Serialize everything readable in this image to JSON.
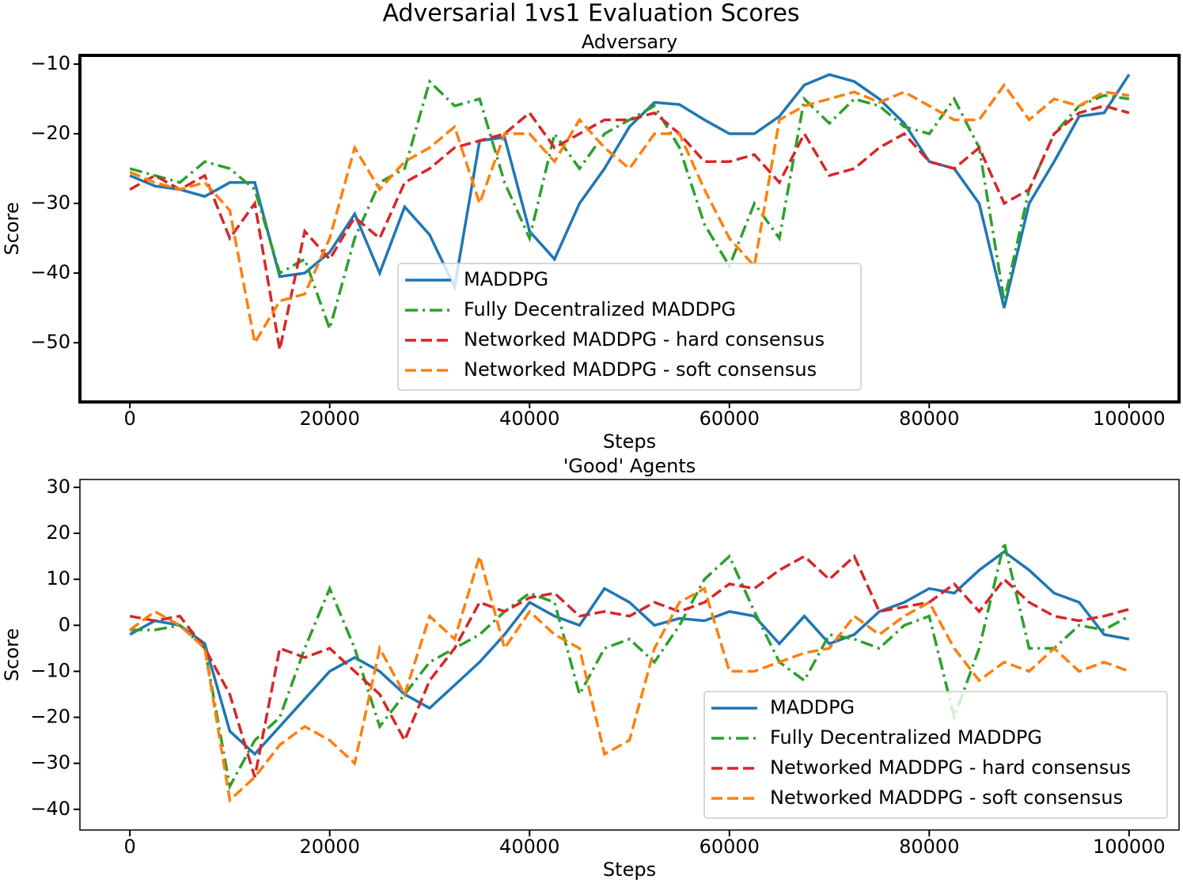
{
  "title": "Adversarial 1vs1 Evaluation Scores",
  "chart_data": [
    {
      "type": "line",
      "title": "Adversary",
      "xlabel": "Steps",
      "ylabel": "Score",
      "legend": "lower center",
      "x": [
        0,
        2500,
        5000,
        7500,
        10000,
        12500,
        15000,
        17500,
        20000,
        22500,
        25000,
        27500,
        30000,
        32500,
        35000,
        37500,
        40000,
        42500,
        45000,
        47500,
        50000,
        52500,
        55000,
        57500,
        60000,
        62500,
        65000,
        67500,
        70000,
        72500,
        75000,
        77500,
        80000,
        82500,
        85000,
        87500,
        90000,
        92500,
        95000,
        97500,
        100000
      ],
      "xlim": [
        -5000,
        105000
      ],
      "xticks": [
        0,
        20000,
        40000,
        60000,
        80000,
        100000
      ],
      "ylim": [
        -58.5,
        -8.75
      ],
      "yticks": [
        {
          "value": -50,
          "label": "−50"
        },
        {
          "value": -40,
          "label": "−40"
        },
        {
          "value": -30,
          "label": "−30"
        },
        {
          "value": -20,
          "label": "−20"
        },
        {
          "value": -10,
          "label": "−10"
        }
      ],
      "series": [
        {
          "name": "MADDPG",
          "color": "#1f77b4",
          "linestyle": "solid",
          "values": [
            -26,
            -27.5,
            -28,
            -29,
            -27,
            -27,
            -40.5,
            -40,
            -37,
            -31.5,
            -40,
            -30.5,
            -34.5,
            -42,
            -21,
            -20.5,
            -34,
            -38,
            -30,
            -25,
            -19,
            -15.5,
            -15.8,
            -18,
            -20,
            -20,
            -17.5,
            -13,
            -11.5,
            -12.5,
            -15,
            -18.5,
            -24,
            -25,
            -30,
            -45,
            -30,
            -24,
            -17.5,
            -17,
            -11.5
          ]
        },
        {
          "name": "Fully Decentralized MADDPG",
          "color": "#2ca02c",
          "linestyle": "dashdot",
          "values": [
            -25,
            -26,
            -27,
            -24,
            -25,
            -28,
            -40,
            -38,
            -48,
            -35,
            -27,
            -25,
            -12.5,
            -16,
            -15,
            -27,
            -35,
            -20,
            -25,
            -20,
            -18,
            -16,
            -22,
            -33,
            -39,
            -30,
            -35,
            -15,
            -18.5,
            -15,
            -16,
            -19,
            -20,
            -15,
            -22,
            -44,
            -28,
            -20,
            -16,
            -14.5,
            -15
          ]
        },
        {
          "name": "Networked MADDPG - hard consensus",
          "color": "#d62728",
          "linestyle": "dashed",
          "values": [
            -28,
            -26,
            -28,
            -26,
            -35,
            -30,
            -51,
            -34,
            -38,
            -32,
            -35,
            -27,
            -25,
            -22,
            -21,
            -20,
            -17,
            -22,
            -20,
            -18,
            -18,
            -17,
            -20,
            -24,
            -24,
            -23,
            -27,
            -20,
            -26,
            -25,
            -22,
            -20,
            -24,
            -25,
            -22,
            -30,
            -28,
            -20,
            -17,
            -16,
            -17
          ]
        },
        {
          "name": "Networked MADDPG - soft consensus",
          "color": "#ff7f0e",
          "linestyle": "dashed",
          "values": [
            -25.5,
            -27,
            -28,
            -27,
            -31,
            -50,
            -44,
            -43,
            -35,
            -22,
            -28,
            -24,
            -22,
            -19,
            -30,
            -20,
            -20,
            -24,
            -18,
            -22,
            -25,
            -20,
            -20,
            -28,
            -35,
            -39,
            -18,
            -16,
            -15,
            -14,
            -15.5,
            -14,
            -16,
            -18,
            -18,
            -13,
            -18,
            -15,
            -16,
            -14,
            -14.5
          ]
        }
      ]
    },
    {
      "type": "line",
      "title": "'Good' Agents",
      "xlabel": "Steps",
      "ylabel": "Score",
      "legend": "lower right",
      "x": [
        0,
        2500,
        5000,
        7500,
        10000,
        12500,
        15000,
        17500,
        20000,
        22500,
        25000,
        27500,
        30000,
        32500,
        35000,
        37500,
        40000,
        42500,
        45000,
        47500,
        50000,
        52500,
        55000,
        57500,
        60000,
        62500,
        65000,
        67500,
        70000,
        72500,
        75000,
        77500,
        80000,
        82500,
        85000,
        87500,
        90000,
        92500,
        95000,
        97500,
        100000
      ],
      "xlim": [
        -5000,
        105000
      ],
      "xticks": [
        0,
        20000,
        40000,
        60000,
        80000,
        100000
      ],
      "ylim": [
        -44.5,
        31.7
      ],
      "yticks": [
        {
          "value": -40,
          "label": "−40"
        },
        {
          "value": -30,
          "label": "−30"
        },
        {
          "value": -20,
          "label": "−20"
        },
        {
          "value": -10,
          "label": "−10"
        },
        0,
        10,
        20,
        30
      ],
      "series": [
        {
          "name": "MADDPG",
          "color": "#1f77b4",
          "linestyle": "solid",
          "values": [
            -2,
            1,
            0,
            -4,
            -23,
            -28,
            -22,
            -16,
            -10,
            -7,
            -10,
            -15,
            -18,
            -13,
            -8,
            -2,
            5,
            2,
            0,
            8,
            5,
            0,
            1.5,
            1,
            3,
            2,
            -4,
            2,
            -4,
            -2,
            3,
            5,
            8,
            7,
            12,
            16,
            12,
            7,
            5,
            -2,
            -3
          ]
        },
        {
          "name": "Fully Decentralized MADDPG",
          "color": "#2ca02c",
          "linestyle": "dashdot",
          "values": [
            -1,
            -1,
            0,
            -5,
            -35,
            -25,
            -20,
            -5,
            8,
            -5,
            -22,
            -15,
            -8,
            -5,
            -2,
            3,
            7,
            5,
            -15,
            -5,
            -3,
            -8,
            0,
            10,
            15,
            3,
            -8,
            -12,
            -2,
            -3,
            -5,
            0,
            2,
            -20,
            -5,
            18,
            -5,
            -5,
            0,
            -1,
            2
          ]
        },
        {
          "name": "Networked MADDPG - hard consensus",
          "color": "#d62728",
          "linestyle": "dashed",
          "values": [
            2,
            1,
            2,
            -5,
            -15,
            -33,
            -5,
            -7,
            -5,
            -10,
            -15,
            -25,
            -12,
            -5,
            5,
            3,
            6,
            7,
            2,
            3,
            2,
            5,
            3,
            5,
            9,
            8,
            12,
            15,
            10,
            15,
            3,
            4,
            5,
            9,
            3,
            10,
            5,
            2,
            1,
            2,
            3.5
          ]
        },
        {
          "name": "Networked MADDPG - soft consensus",
          "color": "#ff7f0e",
          "linestyle": "dashed",
          "values": [
            -1,
            3,
            0,
            -5,
            -38,
            -33,
            -26,
            -22,
            -25,
            -30,
            -5,
            -15,
            2,
            -3,
            15,
            -5,
            3,
            -2,
            -5,
            -28,
            -25,
            -5,
            5,
            8,
            -10,
            -10,
            -8,
            -6,
            -5,
            2,
            -2,
            2,
            5,
            -5,
            -12,
            -8,
            -10,
            -5,
            -10,
            -8,
            -10
          ]
        }
      ]
    }
  ]
}
